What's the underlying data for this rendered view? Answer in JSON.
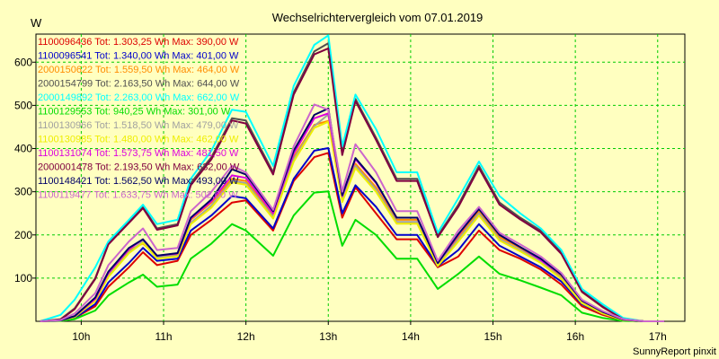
{
  "chart_data": {
    "type": "line",
    "title": "Wechselrichtervergleich vom 07.01.2019",
    "ylabel": "W",
    "footer": "SunnyReport pinxit",
    "ylim": [
      0,
      665
    ],
    "xlim": [
      9.45,
      17.33
    ],
    "yticks": [
      100,
      200,
      300,
      400,
      500,
      600
    ],
    "ytick_labels": [
      "100",
      "200",
      "300",
      "400",
      "500",
      "600"
    ],
    "xticks": [
      10,
      11,
      12,
      13,
      14,
      15,
      16,
      17
    ],
    "xtick_labels": [
      "10h",
      "11h",
      "12h",
      "13h",
      "14h",
      "15h",
      "16h",
      "17h"
    ],
    "grid": true,
    "legend_position": "top-left",
    "x": [
      9.5,
      9.75,
      9.92,
      10.17,
      10.33,
      10.58,
      10.75,
      10.92,
      11.17,
      11.33,
      11.58,
      11.83,
      12.0,
      12.33,
      12.58,
      12.83,
      13.0,
      13.17,
      13.33,
      13.58,
      13.83,
      14.08,
      14.33,
      14.58,
      14.83,
      15.08,
      15.33,
      15.58,
      15.83,
      16.08,
      16.33,
      16.58,
      16.83,
      17.08
    ],
    "series": [
      {
        "name": "1100096436",
        "legend": "1100096436 Tot: 1.303,25 Wh Max: 390,00 W",
        "color": "#dd0000",
        "values": [
          0,
          2,
          8,
          35,
          80,
          125,
          160,
          130,
          140,
          200,
          235,
          275,
          280,
          210,
          325,
          380,
          390,
          240,
          310,
          250,
          190,
          190,
          125,
          150,
          210,
          165,
          145,
          120,
          85,
          35,
          15,
          2,
          0,
          0
        ]
      },
      {
        "name": "1100096541",
        "legend": "1100096541 Tot: 1.340,00 Wh Max: 401,00 W",
        "color": "#0000cc",
        "values": [
          0,
          2,
          8,
          40,
          90,
          135,
          170,
          140,
          145,
          210,
          245,
          290,
          285,
          215,
          330,
          395,
          401,
          250,
          315,
          265,
          200,
          200,
          128,
          165,
          225,
          175,
          150,
          125,
          92,
          40,
          18,
          3,
          0,
          0
        ]
      },
      {
        "name": "2000150622",
        "legend": "2000150622 Tot: 1.559,50 Wh Max: 464,00 W",
        "color": "#ff8c00",
        "values": [
          0,
          2,
          10,
          50,
          110,
          165,
          180,
          150,
          155,
          235,
          275,
          330,
          325,
          245,
          380,
          455,
          464,
          285,
          365,
          310,
          235,
          235,
          130,
          195,
          255,
          195,
          170,
          140,
          105,
          45,
          20,
          3,
          0,
          0
        ]
      },
      {
        "name": "2000154799",
        "legend": "2000154799 Tot: 2.163,50 Wh Max: 644,00 W",
        "color": "#505050",
        "values": [
          0,
          5,
          30,
          100,
          180,
          230,
          265,
          215,
          225,
          320,
          380,
          470,
          465,
          345,
          530,
          625,
          644,
          390,
          515,
          425,
          330,
          330,
          198,
          270,
          360,
          275,
          240,
          210,
          160,
          70,
          35,
          5,
          0,
          0
        ]
      },
      {
        "name": "2000149892",
        "legend": "2000149892 Tot: 2.263,00 Wh Max: 662,00 W",
        "color": "#00ffff",
        "values": [
          0,
          15,
          50,
          125,
          185,
          235,
          270,
          225,
          235,
          330,
          395,
          490,
          485,
          360,
          545,
          640,
          662,
          405,
          525,
          445,
          345,
          345,
          205,
          285,
          370,
          290,
          250,
          215,
          165,
          75,
          40,
          8,
          0,
          0
        ]
      },
      {
        "name": "1100129553",
        "legend": "1100129553 Tot: 940,25 Wh Max: 301,00 W",
        "color": "#00dd00",
        "values": [
          0,
          1,
          5,
          25,
          60,
          90,
          108,
          80,
          85,
          145,
          180,
          225,
          210,
          152,
          245,
          298,
          301,
          175,
          235,
          200,
          145,
          145,
          75,
          110,
          150,
          110,
          95,
          78,
          60,
          20,
          8,
          1,
          0,
          0
        ]
      },
      {
        "name": "1100130966",
        "legend": "1100130966 Tot: 1.518,50 Wh Max: 479,00 W",
        "color": "#a0a0a0",
        "values": [
          0,
          2,
          10,
          48,
          105,
          160,
          185,
          148,
          152,
          228,
          268,
          325,
          320,
          242,
          375,
          452,
          479,
          280,
          360,
          305,
          230,
          230,
          130,
          190,
          250,
          190,
          165,
          138,
          100,
          43,
          19,
          3,
          0,
          0
        ]
      },
      {
        "name": "1100130985",
        "legend": "1100130985 Tot: 1.480,00 Wh Max: 462,00 W",
        "color": "#eeee00",
        "values": [
          0,
          2,
          10,
          47,
          103,
          158,
          182,
          145,
          150,
          225,
          263,
          322,
          316,
          238,
          370,
          448,
          462,
          276,
          355,
          300,
          226,
          226,
          128,
          185,
          245,
          187,
          162,
          135,
          98,
          42,
          18,
          3,
          0,
          0
        ]
      },
      {
        "name": "1100131074",
        "legend": "1100131074 Tot: 1.573,75 Wh Max: 481,50 W",
        "color": "#dd00dd",
        "values": [
          0,
          2,
          12,
          52,
          112,
          167,
          190,
          152,
          157,
          238,
          278,
          338,
          332,
          250,
          388,
          470,
          481.5,
          290,
          375,
          320,
          240,
          240,
          135,
          200,
          262,
          200,
          172,
          142,
          108,
          48,
          22,
          4,
          0,
          0
        ]
      },
      {
        "name": "2000001478",
        "legend": "2000001478 Tot: 2.193,50 Wh Max: 632,00 W",
        "color": "#800040",
        "values": [
          0,
          4,
          28,
          98,
          178,
          228,
          262,
          212,
          222,
          315,
          375,
          465,
          458,
          340,
          525,
          618,
          632,
          385,
          510,
          420,
          325,
          325,
          195,
          265,
          355,
          270,
          236,
          206,
          156,
          68,
          33,
          5,
          0,
          0
        ]
      },
      {
        "name": "1100148421",
        "legend": "1100148421 Tot: 1.562,50 Wh Max: 493,00 W",
        "color": "#000066",
        "values": [
          0,
          2,
          12,
          55,
          115,
          170,
          190,
          152,
          158,
          240,
          282,
          352,
          340,
          255,
          395,
          478,
          493,
          292,
          378,
          322,
          240,
          240,
          135,
          202,
          260,
          200,
          172,
          145,
          108,
          48,
          22,
          4,
          0,
          0
        ]
      },
      {
        "name": "1100119477",
        "legend": "1100119477 Tot: 1.633,75 Wh Max: 502,00 W",
        "color": "#cc66cc",
        "values": [
          0,
          3,
          18,
          65,
          130,
          185,
          215,
          165,
          170,
          255,
          300,
          360,
          345,
          258,
          405,
          502,
          490,
          300,
          410,
          345,
          255,
          255,
          140,
          210,
          265,
          205,
          178,
          150,
          112,
          50,
          24,
          5,
          0,
          0
        ]
      }
    ]
  }
}
